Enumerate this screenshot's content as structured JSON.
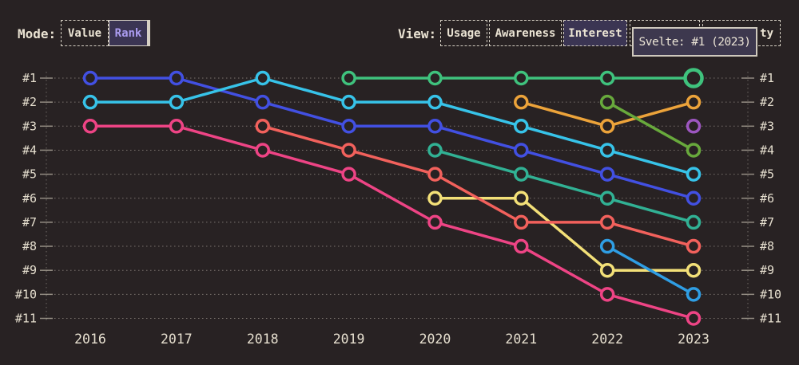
{
  "controls": {
    "mode": {
      "label": "Mode:",
      "options": [
        {
          "label": "Value",
          "selected": false
        },
        {
          "label": "Rank",
          "selected": true
        }
      ]
    },
    "view": {
      "label": "View:",
      "options": [
        {
          "label": "Usage",
          "selected": false
        },
        {
          "label": "Awareness",
          "selected": false
        },
        {
          "label": "Interest",
          "selected": true
        },
        {
          "label": "",
          "selected": false
        },
        {
          "label": "ty",
          "selected": false
        }
      ]
    }
  },
  "tooltip": {
    "text": "Svelte: #1 (2023)"
  },
  "colors": {
    "background": "#282223",
    "text_cream": "#eae3d3",
    "accent_purple": "#ab9cf0",
    "selected_fill": "#3b3553",
    "tooltip_bg": "#3d384e",
    "tooltip_border": "#cfc9bd",
    "grid": "#cbc4b8"
  },
  "chart_data": {
    "type": "line",
    "subtype": "bump-rank-chart",
    "title": "",
    "xlabel": "",
    "ylabel": "",
    "x_labels": [
      "2016",
      "2017",
      "2018",
      "2019",
      "2020",
      "2021",
      "2022",
      "2023"
    ],
    "rank_labels": [
      "#1",
      "#2",
      "#3",
      "#4",
      "#5",
      "#6",
      "#7",
      "#8",
      "#9",
      "#10",
      "#11"
    ],
    "x_range": [
      2016,
      2023
    ],
    "rank_range": [
      1,
      11
    ],
    "grid": "dotted-horizontal",
    "legend": "none",
    "series": [
      {
        "name": "purple",
        "color": "#9d56c0",
        "points": [
          [
            2023,
            3
          ]
        ]
      },
      {
        "name": "orange",
        "color": "#eca33a",
        "points": [
          [
            2021,
            2
          ],
          [
            2022,
            3
          ],
          [
            2023,
            2
          ]
        ]
      },
      {
        "name": "lime",
        "color": "#68a93c",
        "points": [
          [
            2022,
            2
          ],
          [
            2023,
            4
          ]
        ]
      },
      {
        "name": "yellow",
        "color": "#f3e078",
        "points": [
          [
            2020,
            6
          ],
          [
            2021,
            6
          ],
          [
            2022,
            9
          ],
          [
            2023,
            9
          ]
        ]
      },
      {
        "name": "azure",
        "color": "#2f9ee4",
        "points": [
          [
            2022,
            8
          ],
          [
            2023,
            10
          ]
        ]
      },
      {
        "name": "teal",
        "color": "#31b194",
        "points": [
          [
            2020,
            4
          ],
          [
            2021,
            5
          ],
          [
            2022,
            6
          ],
          [
            2023,
            7
          ]
        ]
      },
      {
        "name": "salmon",
        "color": "#f2615c",
        "points": [
          [
            2018,
            3
          ],
          [
            2019,
            4
          ],
          [
            2020,
            5
          ],
          [
            2021,
            7
          ],
          [
            2022,
            7
          ],
          [
            2023,
            8
          ]
        ]
      },
      {
        "name": "pink",
        "color": "#ee4485",
        "points": [
          [
            2016,
            3
          ],
          [
            2017,
            3
          ],
          [
            2018,
            4
          ],
          [
            2019,
            5
          ],
          [
            2020,
            7
          ],
          [
            2021,
            8
          ],
          [
            2022,
            10
          ],
          [
            2023,
            11
          ]
        ]
      },
      {
        "name": "indigo",
        "color": "#4250e2",
        "points": [
          [
            2016,
            1
          ],
          [
            2017,
            1
          ],
          [
            2018,
            2
          ],
          [
            2019,
            3
          ],
          [
            2020,
            3
          ],
          [
            2021,
            4
          ],
          [
            2022,
            5
          ],
          [
            2023,
            6
          ]
        ]
      },
      {
        "name": "cyan",
        "color": "#37c3e9",
        "points": [
          [
            2016,
            2
          ],
          [
            2017,
            2
          ],
          [
            2018,
            1
          ],
          [
            2019,
            2
          ],
          [
            2020,
            2
          ],
          [
            2021,
            3
          ],
          [
            2022,
            4
          ],
          [
            2023,
            5
          ]
        ]
      },
      {
        "name": "svelte",
        "color": "#3fc27d",
        "points": [
          [
            2019,
            1
          ],
          [
            2020,
            1
          ],
          [
            2021,
            1
          ],
          [
            2022,
            1
          ],
          [
            2023,
            1
          ]
        ],
        "highlight": {
          "year": 2023,
          "rank": 1
        }
      }
    ]
  }
}
